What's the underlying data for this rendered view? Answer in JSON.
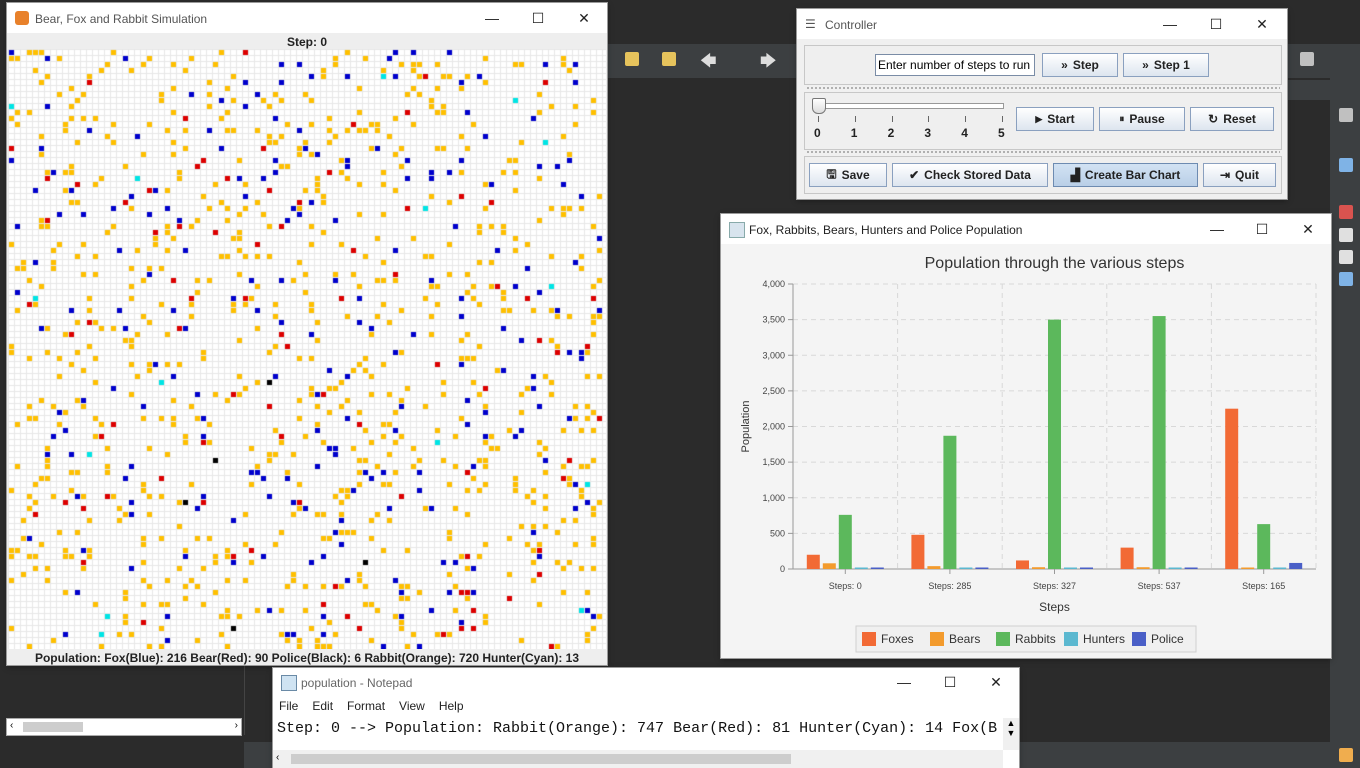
{
  "sim": {
    "title": "Bear, Fox and Rabbit Simulation",
    "step": "Step: 0",
    "population": "Population: Fox(Blue): 216 Bear(Red): 90 Police(Black): 6 Rabbit(Orange): 720 Hunter(Cyan): 13",
    "colors": {
      "fox": "#0000cc",
      "bear": "#dd0000",
      "police": "#000000",
      "rabbit": "#ffc000",
      "hunter": "#00e5e5",
      "empty": "#ffffff",
      "grid": "#e8e8e8"
    }
  },
  "controller": {
    "title": "Controller",
    "steps_input": "Enter number of steps to run",
    "step_btn": "Step",
    "step1_btn": "Step 1",
    "slider_ticks": [
      "0",
      "1",
      "2",
      "3",
      "4",
      "5"
    ],
    "slider_value": 0,
    "start_btn": "Start",
    "pause_btn": "Pause",
    "reset_btn": "Reset",
    "save_btn": "Save",
    "check_btn": "Check Stored Data",
    "chart_btn": "Create Bar Chart",
    "quit_btn": "Quit"
  },
  "chart_window": {
    "title": "Fox, Rabbits, Bears, Hunters and Police Population"
  },
  "chart_data": {
    "type": "bar",
    "title": "Population through the various steps",
    "xlabel": "Steps",
    "ylabel": "Population",
    "ylim": [
      0,
      4000
    ],
    "yticks": [
      "0",
      "500",
      "1,000",
      "1,500",
      "2,000",
      "2,500",
      "3,000",
      "3,500",
      "4,000"
    ],
    "ytick_values": [
      0,
      500,
      1000,
      1500,
      2000,
      2500,
      3000,
      3500,
      4000
    ],
    "categories": [
      "Steps: 0",
      "Steps: 285",
      "Steps: 327",
      "Steps: 537",
      "Steps: 165"
    ],
    "series": [
      {
        "name": "Foxes",
        "color": "#f26a35",
        "values": [
          200,
          480,
          120,
          300,
          2250
        ]
      },
      {
        "name": "Bears",
        "color": "#f39b2d",
        "values": [
          80,
          40,
          25,
          25,
          10
        ]
      },
      {
        "name": "Rabbits",
        "color": "#5cb85c",
        "values": [
          760,
          1870,
          3500,
          3550,
          630
        ]
      },
      {
        "name": "Hunters",
        "color": "#5bb8d0",
        "values": [
          12,
          8,
          8,
          8,
          3
        ]
      },
      {
        "name": "Police",
        "color": "#4a5fc7",
        "values": [
          6,
          5,
          5,
          5,
          85
        ]
      }
    ],
    "legend": "bottom",
    "grid": true
  },
  "notepad": {
    "title": "population - Notepad",
    "menu": [
      "File",
      "Edit",
      "Format",
      "View",
      "Help"
    ],
    "content": "Step: 0 --> Population: Rabbit(Orange): 747 Bear(Red): 81 Hunter(Cyan): 14 Fox(B"
  }
}
